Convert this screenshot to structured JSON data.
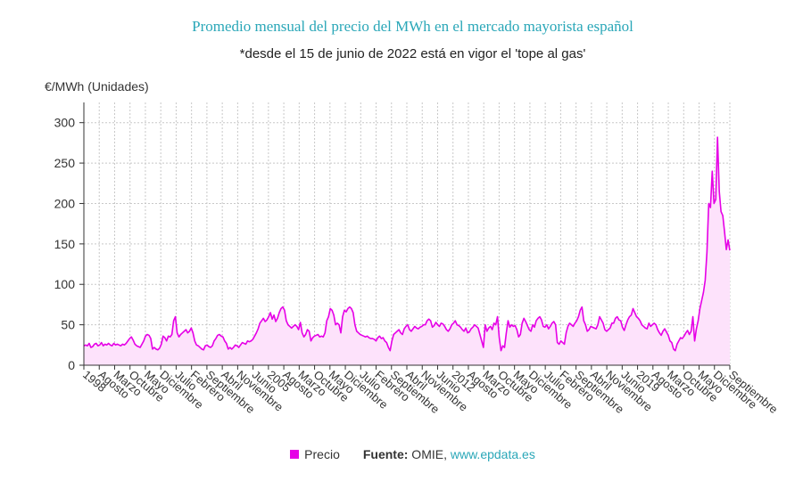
{
  "colors": {
    "line": "#e600e6",
    "fill": "#fde2fb",
    "title": "#2aa7b8",
    "grid": "#c8c8c8"
  },
  "legend": {
    "series_name": "Precio",
    "source_label": "Fuente:",
    "source_text": " OMIE, ",
    "source_link": "www.epdata.es"
  },
  "chart_data": {
    "type": "area",
    "title": "Promedio mensual del precio del MWh en el mercado mayorista español",
    "subtitle": "*desde el 15 de junio de 2022 está en vigor el 'tope al gas'",
    "ylabel": "€/MWh (Unidades)",
    "xlabel": "",
    "ylim": [
      0,
      325
    ],
    "yticks": [
      0,
      50,
      100,
      150,
      200,
      250,
      300
    ],
    "grid": true,
    "x_start": "1998-01",
    "x_end": "2022-09",
    "xtick_labels": [
      "1998",
      "Agosto",
      "Marzo",
      "Octubre",
      "Mayo",
      "Diciembre",
      "Julio",
      "Febrero",
      "Septiembre",
      "Abril",
      "Noviembre",
      "Junio",
      "2005",
      "Agosto",
      "Marzo",
      "Octubre",
      "Mayo",
      "Diciembre",
      "Julio",
      "Febrero",
      "Septiembre",
      "Abril",
      "Noviembre",
      "Junio",
      "2012",
      "Agosto",
      "Marzo",
      "Octubre",
      "Mayo",
      "Diciembre",
      "Julio",
      "Febrero",
      "Septiembre",
      "Abril",
      "Noviembre",
      "Junio",
      "2019",
      "Agosto",
      "Marzo",
      "Octubre",
      "Mayo",
      "Diciembre",
      "Septiembre"
    ],
    "series": [
      {
        "name": "Precio",
        "values": [
          24,
          25,
          24,
          27,
          22,
          23,
          26,
          27,
          24,
          25,
          28,
          24,
          26,
          25,
          27,
          25,
          24,
          27,
          25,
          26,
          25,
          24,
          26,
          25,
          27,
          30,
          33,
          35,
          31,
          26,
          24,
          23,
          22,
          26,
          30,
          36,
          38,
          37,
          33,
          20,
          22,
          20,
          19,
          21,
          26,
          36,
          34,
          30,
          36,
          35,
          38,
          55,
          60,
          40,
          35,
          38,
          40,
          42,
          44,
          40,
          42,
          46,
          40,
          30,
          25,
          24,
          22,
          20,
          19,
          24,
          25,
          23,
          22,
          24,
          30,
          33,
          37,
          38,
          36,
          35,
          30,
          27,
          20,
          22,
          20,
          22,
          25,
          24,
          22,
          25,
          28,
          27,
          26,
          30,
          29,
          30,
          32,
          36,
          40,
          45,
          52,
          55,
          58,
          54,
          56,
          60,
          65,
          57,
          62,
          54,
          58,
          65,
          70,
          72,
          68,
          55,
          50,
          48,
          46,
          48,
          50,
          48,
          44,
          53,
          40,
          35,
          38,
          44,
          42,
          30,
          34,
          36,
          37,
          38,
          35,
          36,
          35,
          40,
          55,
          60,
          70,
          68,
          62,
          50,
          52,
          50,
          40,
          60,
          68,
          66,
          70,
          72,
          70,
          65,
          50,
          42,
          40,
          38,
          37,
          36,
          35,
          36,
          34,
          33,
          33,
          32,
          30,
          34,
          36,
          33,
          34,
          30,
          28,
          22,
          18,
          30,
          38,
          40,
          42,
          44,
          40,
          38,
          45,
          48,
          50,
          44,
          42,
          45,
          48,
          46,
          45,
          47,
          48,
          50,
          50,
          55,
          57,
          55,
          47,
          49,
          53,
          50,
          48,
          52,
          51,
          48,
          44,
          42,
          45,
          50,
          52,
          55,
          50,
          49,
          47,
          44,
          42,
          46,
          40,
          41,
          45,
          47,
          50,
          48,
          46,
          38,
          30,
          22,
          50,
          42,
          46,
          48,
          44,
          52,
          50,
          60,
          34,
          18,
          24,
          22,
          40,
          55,
          47,
          50,
          48,
          49,
          44,
          35,
          38,
          52,
          58,
          54,
          49,
          44,
          42,
          50,
          47,
          55,
          58,
          60,
          56,
          48,
          47,
          50,
          45,
          48,
          52,
          54,
          50,
          28,
          26,
          30,
          28,
          26,
          40,
          48,
          52,
          50,
          48,
          52,
          55,
          60,
          68,
          72,
          55,
          50,
          42,
          44,
          48,
          47,
          46,
          45,
          50,
          60,
          56,
          52,
          44,
          42,
          44,
          46,
          52,
          52,
          58,
          60,
          56,
          55,
          47,
          43,
          50,
          56,
          60,
          62,
          70,
          65,
          60,
          58,
          55,
          50,
          48,
          46,
          45,
          52,
          48,
          50,
          52,
          50,
          44,
          40,
          37,
          42,
          45,
          41,
          37,
          30,
          28,
          20,
          18,
          26,
          30,
          34,
          33,
          36,
          40,
          43,
          38,
          42,
          60,
          30,
          45,
          55,
          70,
          80,
          90,
          105,
          140,
          200,
          195,
          240,
          200,
          205,
          282,
          215,
          190,
          185,
          165,
          143,
          155,
          142
        ]
      }
    ]
  }
}
